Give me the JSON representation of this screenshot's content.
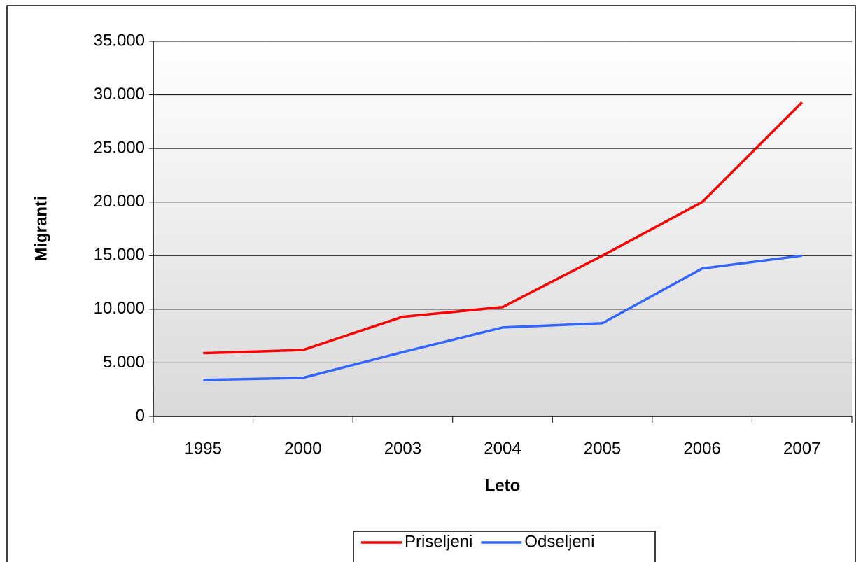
{
  "chart_data": {
    "type": "line",
    "x_label": "Leto",
    "y_label": "Migranti",
    "categories": [
      "1995",
      "2000",
      "2003",
      "2004",
      "2005",
      "2006",
      "2007"
    ],
    "series": [
      {
        "name": "Priseljeni",
        "color": "#ff0000",
        "values": [
          5900,
          6200,
          9300,
          10200,
          15000,
          20000,
          29300
        ]
      },
      {
        "name": "Odseljeni",
        "color": "#3366ff",
        "values": [
          3400,
          3600,
          6000,
          8300,
          8700,
          13800,
          15000
        ]
      }
    ],
    "ylim": [
      0,
      35000
    ],
    "yticks": [
      0,
      {
        "value": 5000,
        "label": "5.000"
      },
      {
        "value": 10000,
        "label": "10.000"
      },
      {
        "value": 15000,
        "label": "15.000"
      },
      {
        "value": 20000,
        "label": "20.000"
      },
      {
        "value": 25000,
        "label": "25.000"
      },
      {
        "value": 30000,
        "label": "30.000"
      },
      {
        "value": 35000,
        "label": "35.000"
      }
    ],
    "grid": true,
    "legend": "bottom"
  }
}
